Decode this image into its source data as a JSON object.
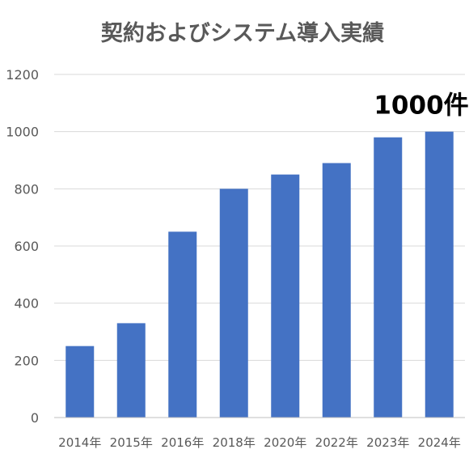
{
  "chart_data": {
    "type": "bar",
    "title": "契約およびシステム導入実績",
    "categories": [
      "2014年",
      "2015年",
      "2016年",
      "2018年",
      "2020年",
      "2022年",
      "2023年",
      "2024年"
    ],
    "values": [
      250,
      330,
      650,
      800,
      850,
      890,
      980,
      1000
    ],
    "xlabel": "",
    "ylabel": "",
    "ylim": [
      0,
      1200
    ],
    "yticks": [
      0,
      200,
      400,
      600,
      800,
      1000,
      1200
    ],
    "grid": true,
    "legend": "none",
    "annotation": "1000件",
    "colors": {
      "bar": "#4472C4",
      "text": "#595959",
      "grid": "#D9D9D9",
      "annotation": "#000000"
    }
  }
}
